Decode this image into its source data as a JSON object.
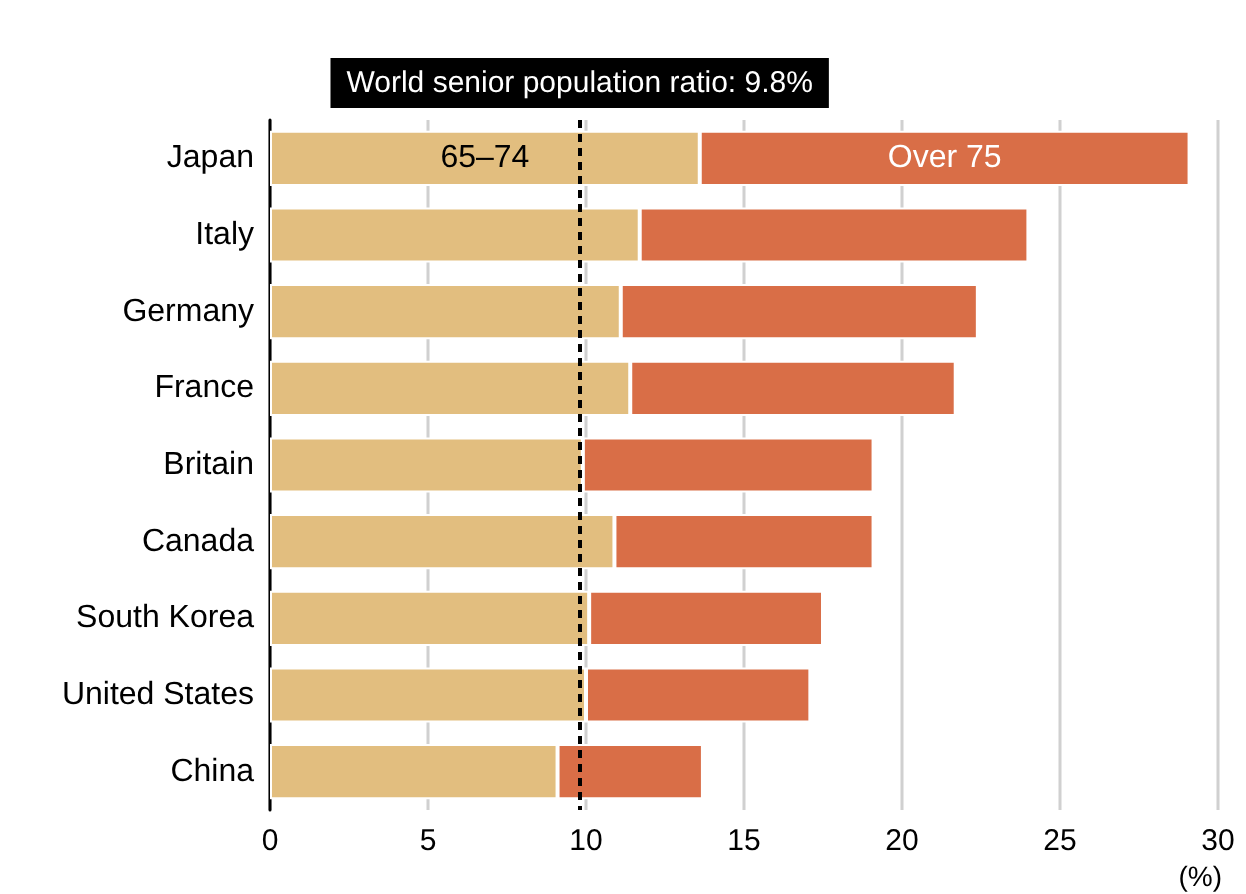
{
  "chart_data": {
    "type": "bar",
    "orientation": "horizontal",
    "stacked": true,
    "categories": [
      "Japan",
      "Italy",
      "Germany",
      "France",
      "Britain",
      "Canada",
      "South Korea",
      "United States",
      "China"
    ],
    "series": [
      {
        "name": "65–74",
        "color": "#e2be7f",
        "values": [
          13.6,
          11.7,
          11.1,
          11.4,
          9.9,
          10.9,
          10.1,
          10.0,
          9.1
        ]
      },
      {
        "name": "Over 75",
        "color": "#d96e47",
        "values": [
          15.5,
          12.3,
          11.3,
          10.3,
          9.2,
          8.2,
          7.4,
          7.1,
          4.6
        ]
      }
    ],
    "xlabel": "(%)",
    "xlim": [
      0,
      30
    ],
    "xticks": [
      0,
      5,
      10,
      15,
      20,
      25,
      30
    ],
    "grid": "x",
    "ref_lines": [
      {
        "axis": "x",
        "value": 9.8,
        "label": "World senior population ratio: 9.8%",
        "color": "#000000",
        "line_style": "dashed"
      }
    ]
  }
}
